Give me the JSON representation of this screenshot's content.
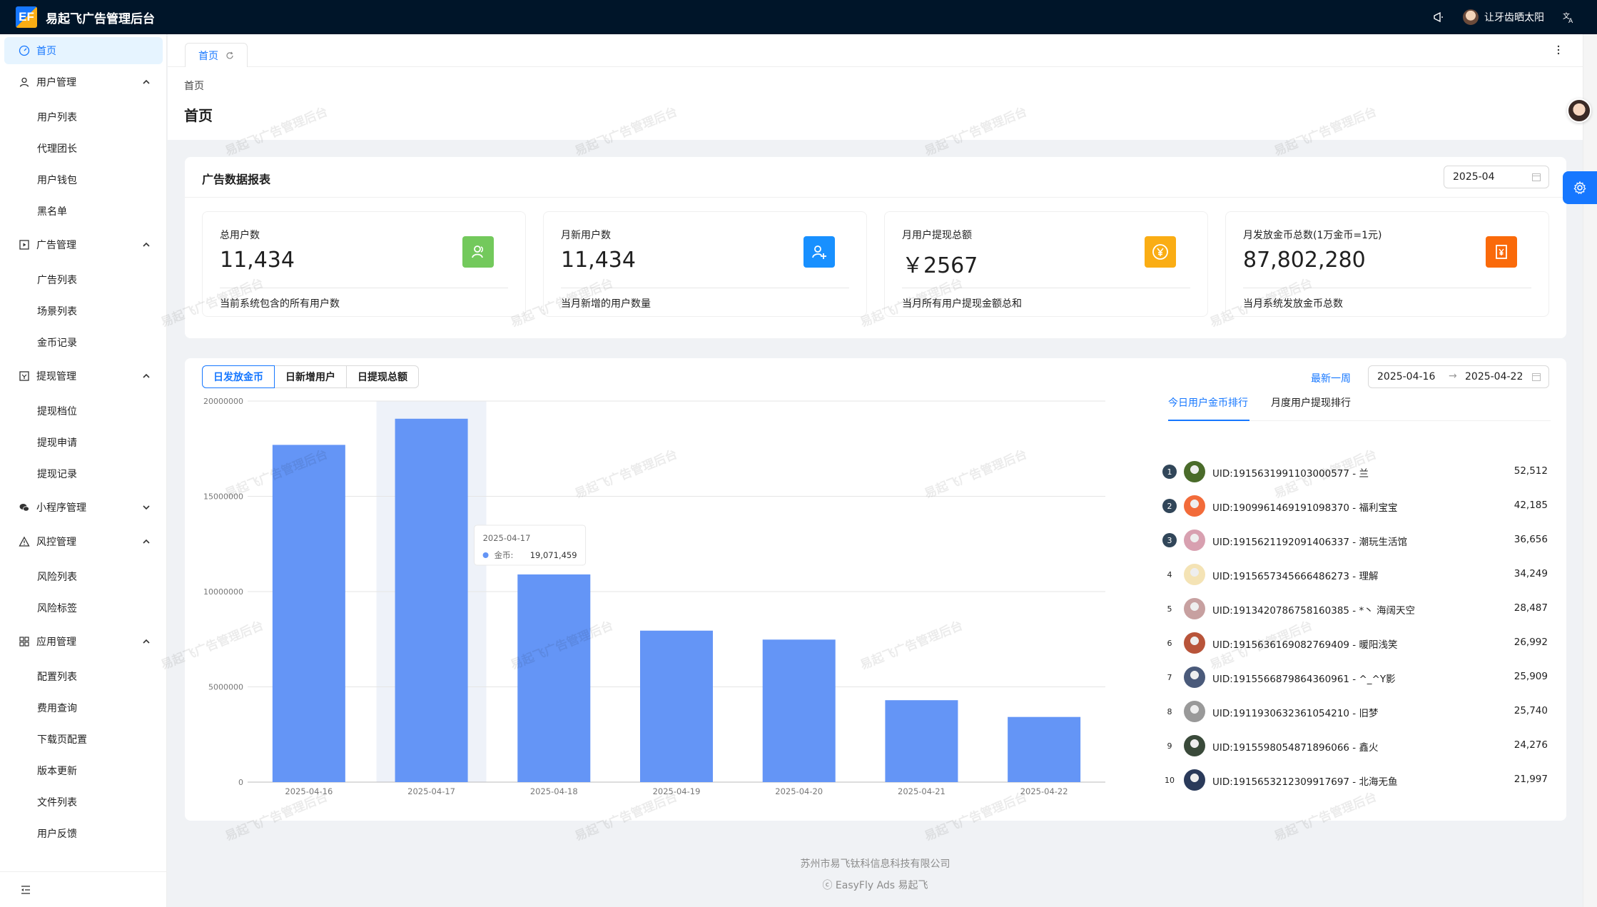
{
  "app": {
    "logo_text": "EF",
    "title": "易起飞广告管理后台"
  },
  "topbar": {
    "user_name": "让牙齿晒太阳"
  },
  "sidebar": {
    "home": "首页",
    "groups": [
      {
        "label": "用户管理",
        "items": [
          "用户列表",
          "代理团长",
          "用户钱包",
          "黑名单"
        ]
      },
      {
        "label": "广告管理",
        "items": [
          "广告列表",
          "场景列表",
          "金币记录"
        ]
      },
      {
        "label": "提现管理",
        "items": [
          "提现档位",
          "提现申请",
          "提现记录"
        ]
      },
      {
        "label": "小程序管理",
        "items": []
      },
      {
        "label": "风控管理",
        "items": [
          "风险列表",
          "风险标签"
        ]
      },
      {
        "label": "应用管理",
        "items": [
          "配置列表",
          "费用查询",
          "下载页配置",
          "版本更新",
          "文件列表",
          "用户反馈"
        ]
      }
    ]
  },
  "tabs": {
    "home": "首页"
  },
  "header": {
    "breadcrumb": "首页",
    "title": "首页"
  },
  "report": {
    "title": "广告数据报表",
    "month": "2025-04",
    "stats": [
      {
        "label": "总用户数",
        "value": "11,434",
        "desc": "当前系统包含的所有用户数",
        "color": "#52c41a"
      },
      {
        "label": "月新用户数",
        "value": "11,434",
        "desc": "当月新增的用户数量",
        "color": "#1677ff"
      },
      {
        "label": "月用户提现总额",
        "value": "￥2567",
        "desc": "当月所有用户提现金额总和",
        "color": "#faad14"
      },
      {
        "label": "月发放金币总数(1万金币=1元)",
        "value": "87,802,280",
        "desc": "当月系统发放金币总数",
        "color": "#fa6400"
      }
    ]
  },
  "trend": {
    "segments": [
      "日发放金币",
      "日新增用户",
      "日提现总额"
    ],
    "active_segment": 0,
    "week_link": "最新一周",
    "range_start": "2025-04-16",
    "range_arrow": "→",
    "range_end": "2025-04-22"
  },
  "chart_data": {
    "type": "bar",
    "categories": [
      "2025-04-16",
      "2025-04-17",
      "2025-04-18",
      "2025-04-19",
      "2025-04-20",
      "2025-04-21",
      "2025-04-22"
    ],
    "values": [
      17700000,
      19071459,
      10900000,
      7950000,
      7480000,
      4300000,
      3420000
    ],
    "ylim": [
      0,
      20000000
    ],
    "yticks": [
      "0",
      "5000000",
      "10000000",
      "15000000",
      "20000000"
    ],
    "bar_color": "#6495f6",
    "tooltip": {
      "date": "2025-04-17",
      "series": "金币:",
      "value": "19,071,459"
    }
  },
  "ranking": {
    "tabs": [
      "今日用户金币排行",
      "月度用户提现排行"
    ],
    "rows": [
      {
        "rank": "1",
        "name": "UID:1915631991103000577 - 兰",
        "value": "52,512"
      },
      {
        "rank": "2",
        "name": "UID:1909961469191098370 - 福利宝宝",
        "value": "42,185"
      },
      {
        "rank": "3",
        "name": "UID:1915621192091406337 - 潮玩生活馆",
        "value": "36,656"
      },
      {
        "rank": "4",
        "name": "UID:1915657345666486273 - 理解",
        "value": "34,249"
      },
      {
        "rank": "5",
        "name": "UID:1913420786758160385 - *丶 海阔天空",
        "value": "28,487"
      },
      {
        "rank": "6",
        "name": "UID:1915636169082769409 - 暖阳浅笑",
        "value": "26,992"
      },
      {
        "rank": "7",
        "name": "UID:1915566879864360961 - ^_^Y影",
        "value": "25,909"
      },
      {
        "rank": "8",
        "name": "UID:1911930632361054210 - 旧梦",
        "value": "25,740"
      },
      {
        "rank": "9",
        "name": "UID:1915598054871896066 - 鑫火",
        "value": "24,276"
      },
      {
        "rank": "10",
        "name": "UID:1915653212309917697 - 北海无鱼",
        "value": "21,997"
      }
    ]
  },
  "footer": {
    "company": "苏州市易飞钛科信息科技有限公司",
    "copyright": "ⓒ EasyFly Ads 易起飞"
  },
  "watermark_text": "易起飞广告管理后台"
}
